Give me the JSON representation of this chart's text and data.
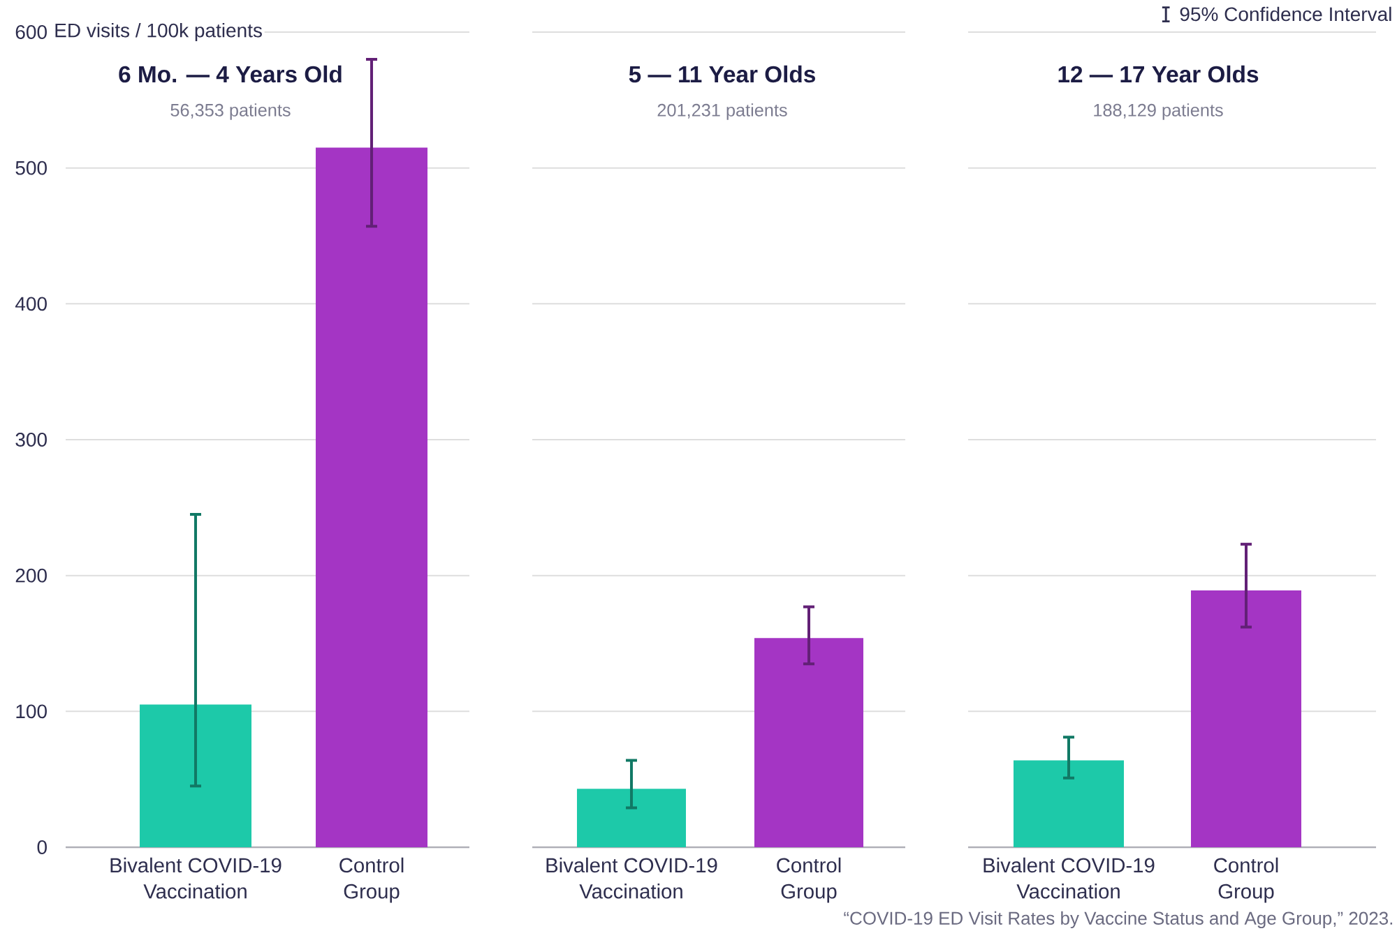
{
  "chart_data": [
    {
      "type": "bar",
      "title": "6 Mo. — 4 Years Old",
      "subtitle": "56,353 patients",
      "ylabel": "ED visits / 100k patients",
      "categories": [
        "Bivalent COVID-19 Vaccination",
        "Control Group"
      ],
      "values": [
        105,
        515
      ],
      "colors": [
        "#1dc9a9",
        "#a435c4"
      ],
      "errors": [
        [
          45,
          245
        ],
        [
          457,
          580
        ]
      ],
      "ylim": [
        0,
        600
      ],
      "yticks": [
        0,
        100,
        200,
        300,
        400,
        500,
        600
      ],
      "grid": "y"
    },
    {
      "type": "bar",
      "title": "5 — 11 Year Olds",
      "subtitle": "201,231 patients",
      "categories": [
        "Bivalent COVID-19 Vaccination",
        "Control Group"
      ],
      "values": [
        43,
        154
      ],
      "colors": [
        "#1dc9a9",
        "#a435c4"
      ],
      "errors": [
        [
          29,
          64
        ],
        [
          135,
          177
        ]
      ],
      "ylim": [
        0,
        600
      ],
      "yticks": [
        0,
        100,
        200,
        300,
        400,
        500,
        600
      ],
      "grid": "y",
      "tick_labels": "x"
    },
    {
      "type": "bar",
      "title": "12 — 17 Year Olds",
      "subtitle": "188,129 patients",
      "categories": [
        "Bivalent COVID-19 Vaccination",
        "Control Group"
      ],
      "values": [
        64,
        189
      ],
      "colors": [
        "#1dc9a9",
        "#a435c4"
      ],
      "errors": [
        [
          51,
          81
        ],
        [
          162,
          223
        ]
      ],
      "ylim": [
        0,
        600
      ],
      "yticks": [
        0,
        100,
        200,
        300,
        400,
        500,
        600
      ],
      "grid": "y",
      "tick_labels": "x",
      "annotations": [
        "95% Confidence Interval",
        "“COVID-19 ED Visit Rates by Vaccine Status and Age Group,” 2023."
      ]
    }
  ]
}
